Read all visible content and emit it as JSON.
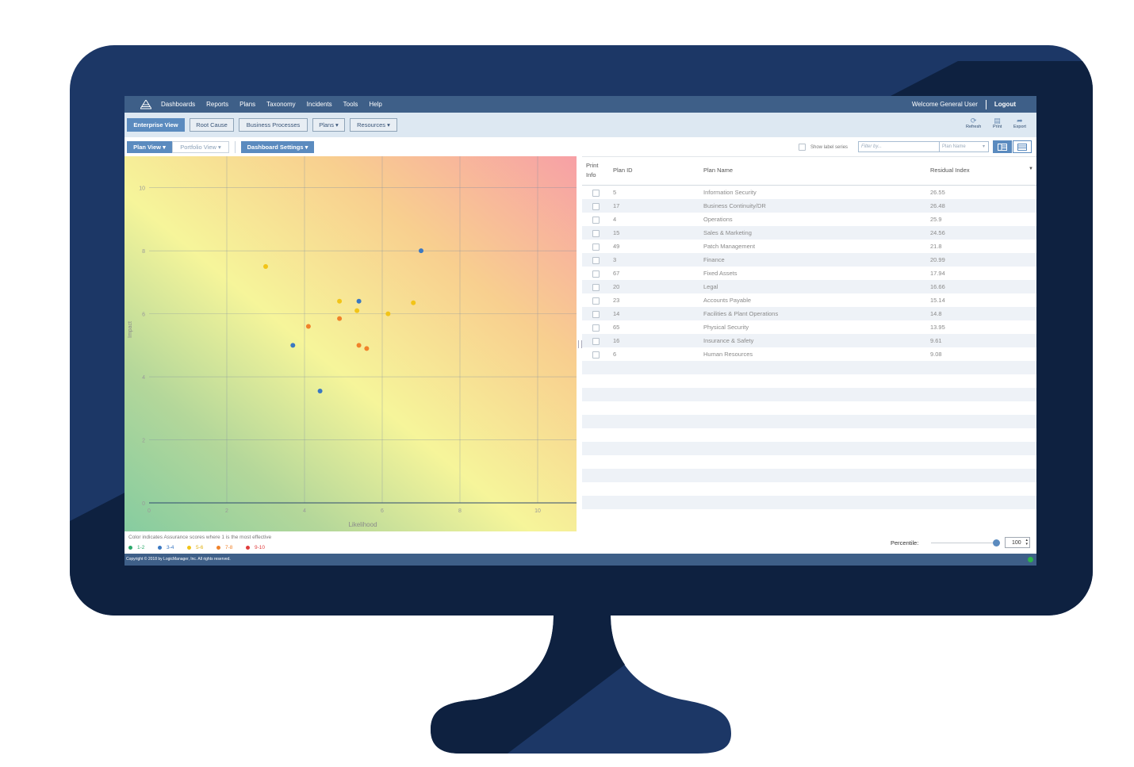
{
  "nav": {
    "items": [
      "Dashboards",
      "Reports",
      "Plans",
      "Taxonomy",
      "Incidents",
      "Tools",
      "Help"
    ],
    "welcome": "Welcome General User",
    "logout": "Logout"
  },
  "toolbar": {
    "buttons": [
      "Enterprise View",
      "Root Cause",
      "Business Processes",
      "Plans",
      "Resources"
    ],
    "refresh": "Refresh",
    "print": "Print",
    "export": "Export"
  },
  "subbar": {
    "plan_view": "Plan View",
    "portfolio_view": "Portfolio View",
    "dashboard_settings": "Dashboard Settings",
    "show_label_series": "Show label series",
    "filter_placeholder": "Filter by...",
    "filter_field": "Plan Name"
  },
  "chart_data": {
    "type": "scatter",
    "xlabel": "Likelihood",
    "ylabel": "Impact",
    "xlim": [
      0,
      11
    ],
    "ylim": [
      0,
      11
    ],
    "xticks": [
      0,
      2,
      4,
      6,
      8,
      10
    ],
    "yticks": [
      0,
      2,
      4,
      6,
      8,
      10
    ],
    "grid": true,
    "background": "heatmap gradient green (low) → yellow → red (high)",
    "series": [
      {
        "name": "1-2",
        "color": "#2aa86a",
        "points": []
      },
      {
        "name": "3-4",
        "color": "#3a78c2",
        "points": [
          [
            7.0,
            8.0
          ],
          [
            5.4,
            6.4
          ],
          [
            3.7,
            5.0
          ],
          [
            4.4,
            3.55
          ]
        ]
      },
      {
        "name": "5-6",
        "color": "#f2c417",
        "points": [
          [
            3.0,
            7.5
          ],
          [
            4.9,
            6.4
          ],
          [
            5.35,
            6.1
          ],
          [
            6.15,
            6.0
          ],
          [
            6.8,
            6.35
          ]
        ]
      },
      {
        "name": "7-8",
        "color": "#f0822a",
        "points": [
          [
            4.1,
            5.6
          ],
          [
            4.9,
            5.85
          ],
          [
            5.4,
            5.0
          ],
          [
            5.6,
            4.9
          ]
        ]
      },
      {
        "name": "9-10",
        "color": "#e03c3c",
        "points": []
      }
    ]
  },
  "legend": {
    "caption": "Color indicates Assurance scores where 1 is the most effective",
    "items": [
      {
        "label": "1-2",
        "color": "#2aa86a"
      },
      {
        "label": "3-4",
        "color": "#3a78c2"
      },
      {
        "label": "5-6",
        "color": "#f2c417"
      },
      {
        "label": "7-8",
        "color": "#f0822a"
      },
      {
        "label": "9-10",
        "color": "#e03c3c"
      }
    ]
  },
  "table": {
    "headers": {
      "print_info_1": "Print",
      "print_info_2": "Info",
      "plan_id": "Plan ID",
      "plan_name": "Plan Name",
      "residual_index": "Residual Index"
    },
    "rows": [
      {
        "id": "5",
        "name": "Information Security",
        "index": "26.55"
      },
      {
        "id": "17",
        "name": "Business Continuity/DR",
        "index": "26.48"
      },
      {
        "id": "4",
        "name": "Operations",
        "index": "25.9"
      },
      {
        "id": "15",
        "name": "Sales & Marketing",
        "index": "24.56"
      },
      {
        "id": "49",
        "name": "Patch Management",
        "index": "21.8"
      },
      {
        "id": "3",
        "name": "Finance",
        "index": "20.99"
      },
      {
        "id": "67",
        "name": "Fixed Assets",
        "index": "17.94"
      },
      {
        "id": "20",
        "name": "Legal",
        "index": "16.66"
      },
      {
        "id": "23",
        "name": "Accounts Payable",
        "index": "15.14"
      },
      {
        "id": "14",
        "name": "Facilities & Plant Operations",
        "index": "14.8"
      },
      {
        "id": "65",
        "name": "Physical Security",
        "index": "13.95"
      },
      {
        "id": "16",
        "name": "Insurance & Safety",
        "index": "9.61"
      },
      {
        "id": "6",
        "name": "Human Resources",
        "index": "9.08"
      }
    ]
  },
  "percentile": {
    "label": "Percentile:",
    "value": "100",
    "slider_fraction": 1.0
  },
  "footer": {
    "copyright": "Copyright © 2018 by LogicManager, Inc. All rights reserved."
  },
  "colors": {
    "nav": "#3e5f88",
    "accent": "#5b8bbf",
    "bezel": "#1c3766",
    "bezel_dark": "#0e2140"
  }
}
